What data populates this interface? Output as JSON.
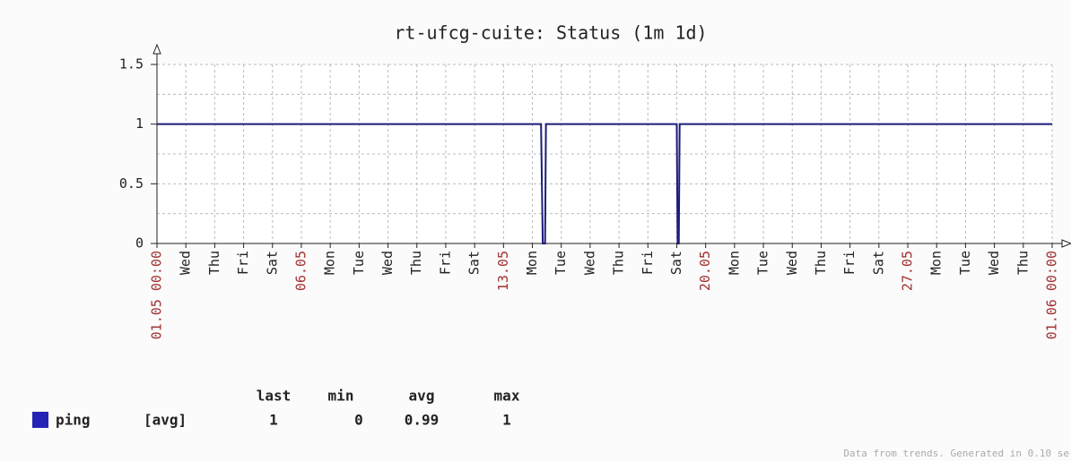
{
  "chart_data": {
    "type": "line",
    "title": "rt-ufcg-cuite: Status  (1m 1d)",
    "x": [
      0,
      13.3,
      13.36,
      13.44,
      13.47,
      18.0,
      18.03,
      18.07,
      18.1,
      31
    ],
    "series": [
      {
        "name": "ping",
        "color": "#1c1c7a",
        "values": [
          1,
          1,
          0,
          0,
          1,
          1,
          0,
          0,
          1,
          1
        ]
      }
    ],
    "xlim": [
      0,
      31
    ],
    "xticks": [
      {
        "value": 0,
        "label": "01.05 00:00"
      },
      {
        "value": 1,
        "label": "Wed"
      },
      {
        "value": 2,
        "label": "Thu"
      },
      {
        "value": 3,
        "label": "Fri"
      },
      {
        "value": 4,
        "label": "Sat"
      },
      {
        "value": 5,
        "label": "06.05"
      },
      {
        "value": 6,
        "label": "Mon"
      },
      {
        "value": 7,
        "label": "Tue"
      },
      {
        "value": 8,
        "label": "Wed"
      },
      {
        "value": 9,
        "label": "Thu"
      },
      {
        "value": 10,
        "label": "Fri"
      },
      {
        "value": 11,
        "label": "Sat"
      },
      {
        "value": 12,
        "label": "13.05"
      },
      {
        "value": 13,
        "label": "Mon"
      },
      {
        "value": 14,
        "label": "Tue"
      },
      {
        "value": 15,
        "label": "Wed"
      },
      {
        "value": 16,
        "label": "Thu"
      },
      {
        "value": 17,
        "label": "Fri"
      },
      {
        "value": 18,
        "label": "Sat"
      },
      {
        "value": 19,
        "label": "20.05"
      },
      {
        "value": 20,
        "label": "Mon"
      },
      {
        "value": 21,
        "label": "Tue"
      },
      {
        "value": 22,
        "label": "Wed"
      },
      {
        "value": 23,
        "label": "Thu"
      },
      {
        "value": 24,
        "label": "Fri"
      },
      {
        "value": 25,
        "label": "Sat"
      },
      {
        "value": 26,
        "label": "27.05"
      },
      {
        "value": 27,
        "label": "Mon"
      },
      {
        "value": 28,
        "label": "Tue"
      },
      {
        "value": 29,
        "label": "Wed"
      },
      {
        "value": 30,
        "label": "Thu"
      },
      {
        "value": 31,
        "label": "01.06 00:00"
      }
    ],
    "ylim": [
      0,
      1.5
    ],
    "yticks": [
      0,
      0.5,
      1,
      1.5
    ],
    "minor_yticks": [
      0.25,
      0.75,
      1.25
    ],
    "grid": true,
    "legend": {
      "columns": [
        "last",
        "min",
        "avg",
        "max"
      ],
      "function": "[avg]",
      "stats": [
        1,
        0,
        0.99,
        1
      ]
    },
    "footer": "Data from trends. Generated in 0.10 se"
  }
}
